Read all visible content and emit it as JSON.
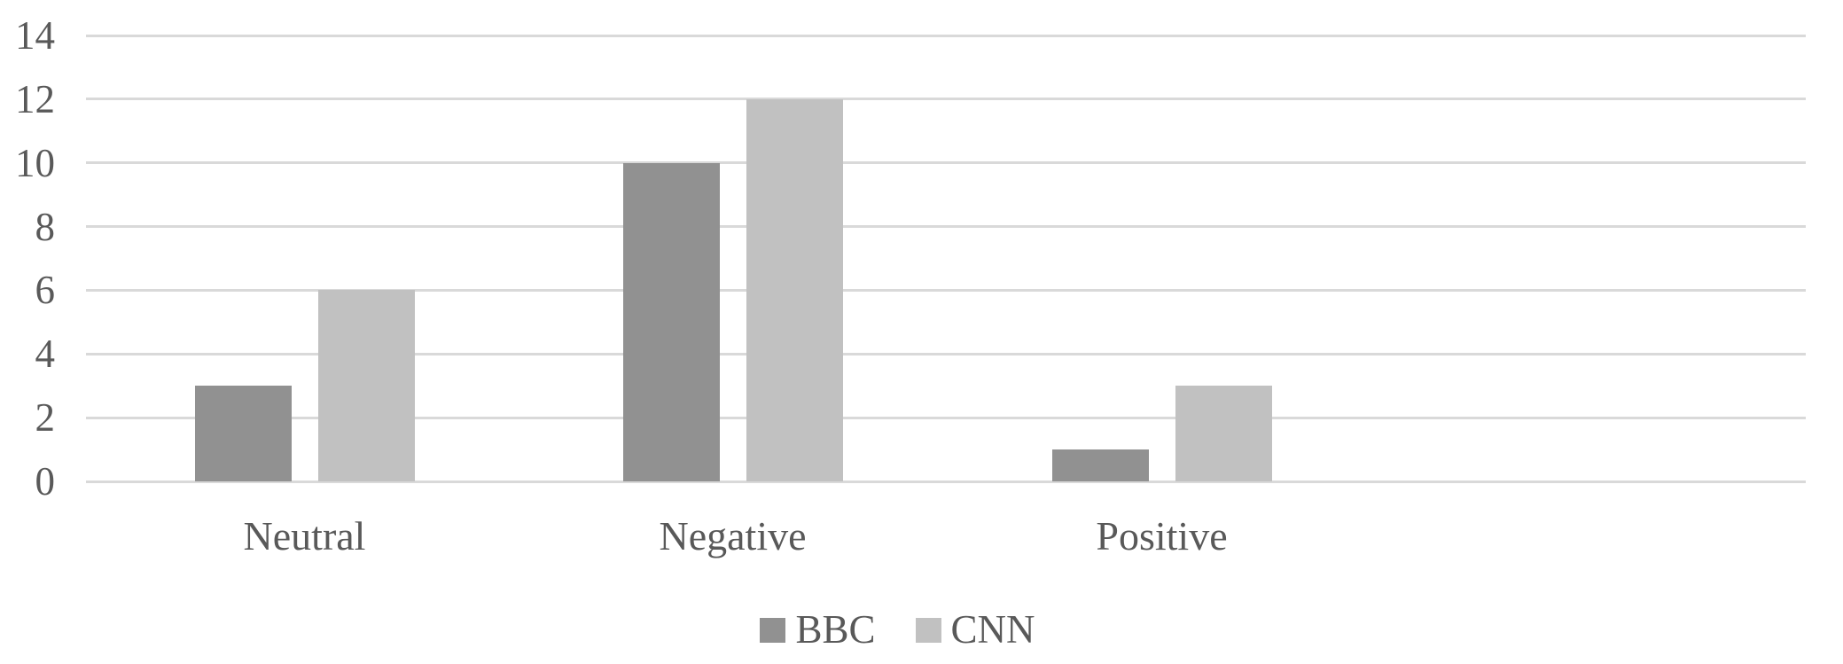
{
  "chart_data": {
    "type": "bar",
    "title": "",
    "xlabel": "",
    "ylabel": "",
    "categories": [
      "Neutral",
      "Negative",
      "Positive"
    ],
    "series": [
      {
        "name": "BBC",
        "values": [
          3,
          10,
          1
        ],
        "color": "#919191"
      },
      {
        "name": "CNN",
        "values": [
          6,
          12,
          3
        ],
        "color": "#c1c1c1"
      }
    ],
    "ylim": [
      0,
      14
    ],
    "yticks": [
      0,
      2,
      4,
      6,
      8,
      10,
      12,
      14
    ],
    "grid": true,
    "gridline_color": "#d9d9d9",
    "text_color": "#595959",
    "background": "#ffffff",
    "legend_position": "bottom"
  }
}
